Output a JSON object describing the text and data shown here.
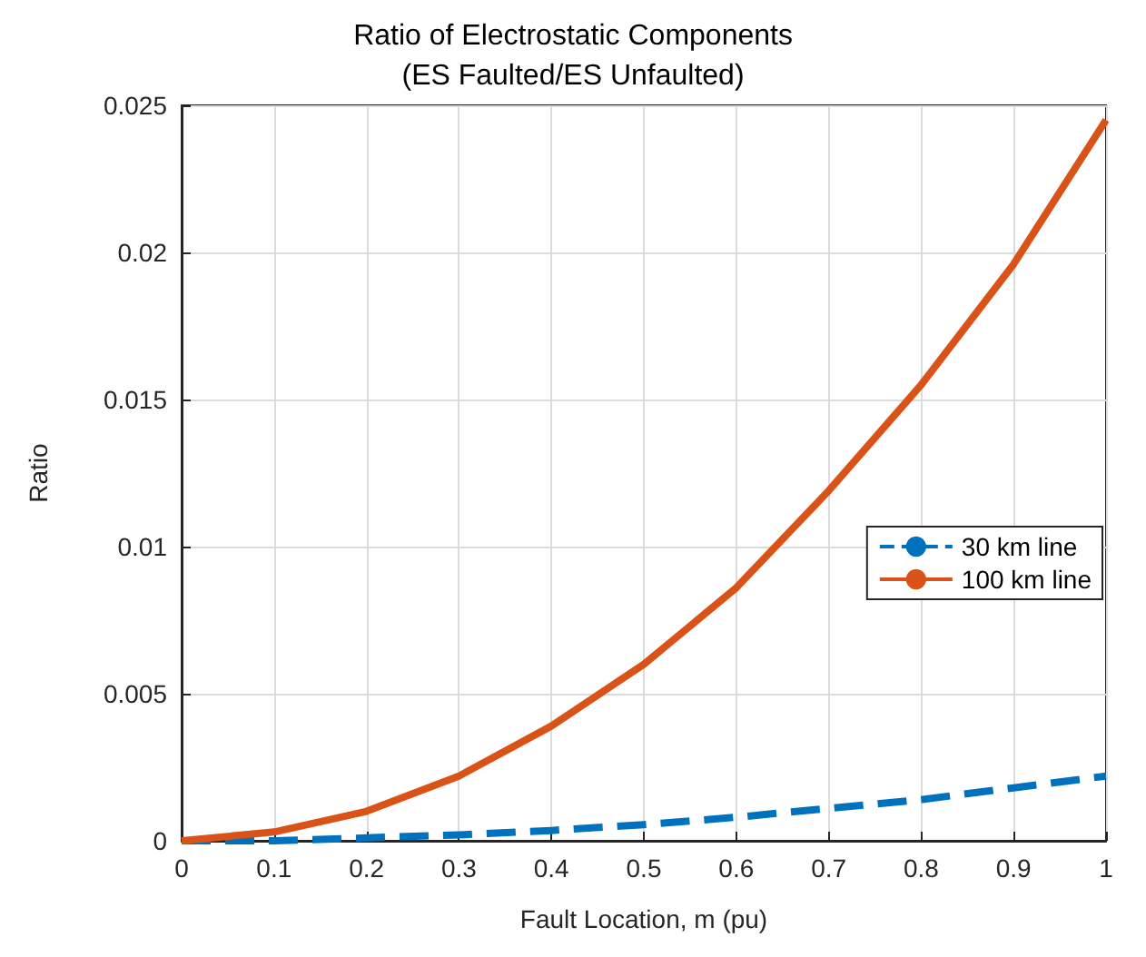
{
  "chart_data": {
    "type": "line",
    "title": "Ratio of Electrostatic Components\n(ES Faulted/ES Unfaulted)",
    "xlabel": "Fault Location, m (pu)",
    "ylabel": "Ratio",
    "x": [
      0,
      0.1,
      0.2,
      0.3,
      0.4,
      0.5,
      0.6,
      0.7,
      0.8,
      0.9,
      1
    ],
    "series": [
      {
        "name": "30 km line",
        "color": "#0072bd",
        "line_style": "dashed",
        "values": [
          0,
          0,
          0.0001,
          0.0002,
          0.00035,
          0.00055,
          0.0008,
          0.0011,
          0.0014,
          0.0018,
          0.0022
        ]
      },
      {
        "name": "100 km line",
        "color": "#d95319",
        "line_style": "solid",
        "values": [
          0,
          0.0003,
          0.001,
          0.0022,
          0.0039,
          0.006,
          0.0086,
          0.0119,
          0.0155,
          0.0196,
          0.0245
        ]
      }
    ],
    "xlim": [
      0,
      1
    ],
    "xticks": [
      0,
      0.1,
      0.2,
      0.3,
      0.4,
      0.5,
      0.6,
      0.7,
      0.8,
      0.9,
      1
    ],
    "ylim": [
      0,
      0.025
    ],
    "yticks": [
      0,
      0.005,
      0.01,
      0.015,
      0.02,
      0.025
    ],
    "grid": true,
    "legend": "right",
    "marker": "none"
  }
}
